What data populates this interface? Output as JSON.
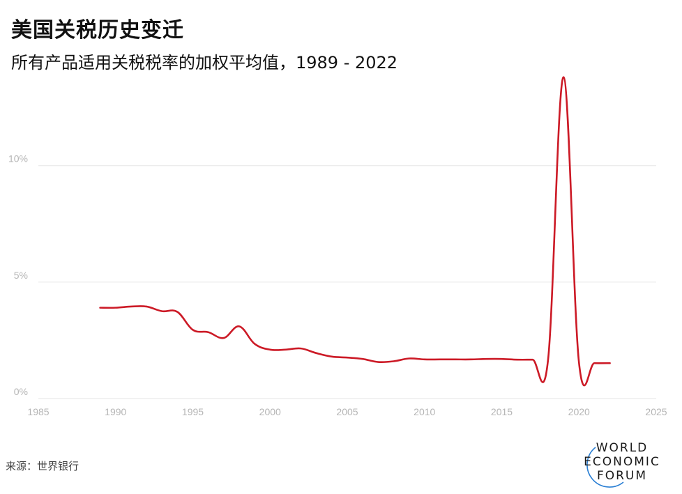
{
  "header": {
    "title": "美国关税历史变迁",
    "subtitle": "所有产品适用关税税率的加权平均值，1989 - 2022"
  },
  "footer": {
    "source": "来源：世界银行"
  },
  "logo": {
    "lines": [
      "WORLD",
      "ECONOMIC",
      "FORUM"
    ],
    "accent_color": "#2a7fd4"
  },
  "colors": {
    "line": "#cc1a26",
    "grid": "#e6e6e6",
    "axis_text": "#b5b5b5"
  },
  "chart_data": {
    "type": "line",
    "title": "美国关税历史变迁",
    "subtitle": "所有产品适用关税税率的加权平均值，1989 - 2022",
    "xlim": [
      1985,
      2025
    ],
    "ylim": [
      0,
      14
    ],
    "x_ticks": [
      1985,
      1990,
      1995,
      2000,
      2005,
      2010,
      2015,
      2020,
      2025
    ],
    "y_ticks": [
      0,
      5,
      10
    ],
    "y_tick_labels": [
      "0%",
      "5%",
      "10%"
    ],
    "grid": "horizontal",
    "series": [
      {
        "x": [
          1989,
          1990,
          1991,
          1992,
          1993,
          1994,
          1995,
          1996,
          1997,
          1998,
          1999,
          2000,
          2001,
          2002,
          2003,
          2004,
          2005,
          2006,
          2007,
          2008,
          2009,
          2010,
          2011,
          2012,
          2013,
          2014,
          2015,
          2016,
          2017,
          2018,
          2019,
          2020,
          2021,
          2022
        ],
        "y": [
          3.9,
          3.9,
          3.95,
          3.95,
          3.75,
          3.72,
          2.95,
          2.85,
          2.6,
          3.1,
          2.35,
          2.1,
          2.1,
          2.15,
          1.95,
          1.8,
          1.76,
          1.7,
          1.57,
          1.6,
          1.72,
          1.68,
          1.68,
          1.68,
          1.68,
          1.7,
          1.7,
          1.67,
          1.67,
          1.67,
          13.8,
          1.55,
          1.52,
          1.52
        ]
      }
    ]
  }
}
